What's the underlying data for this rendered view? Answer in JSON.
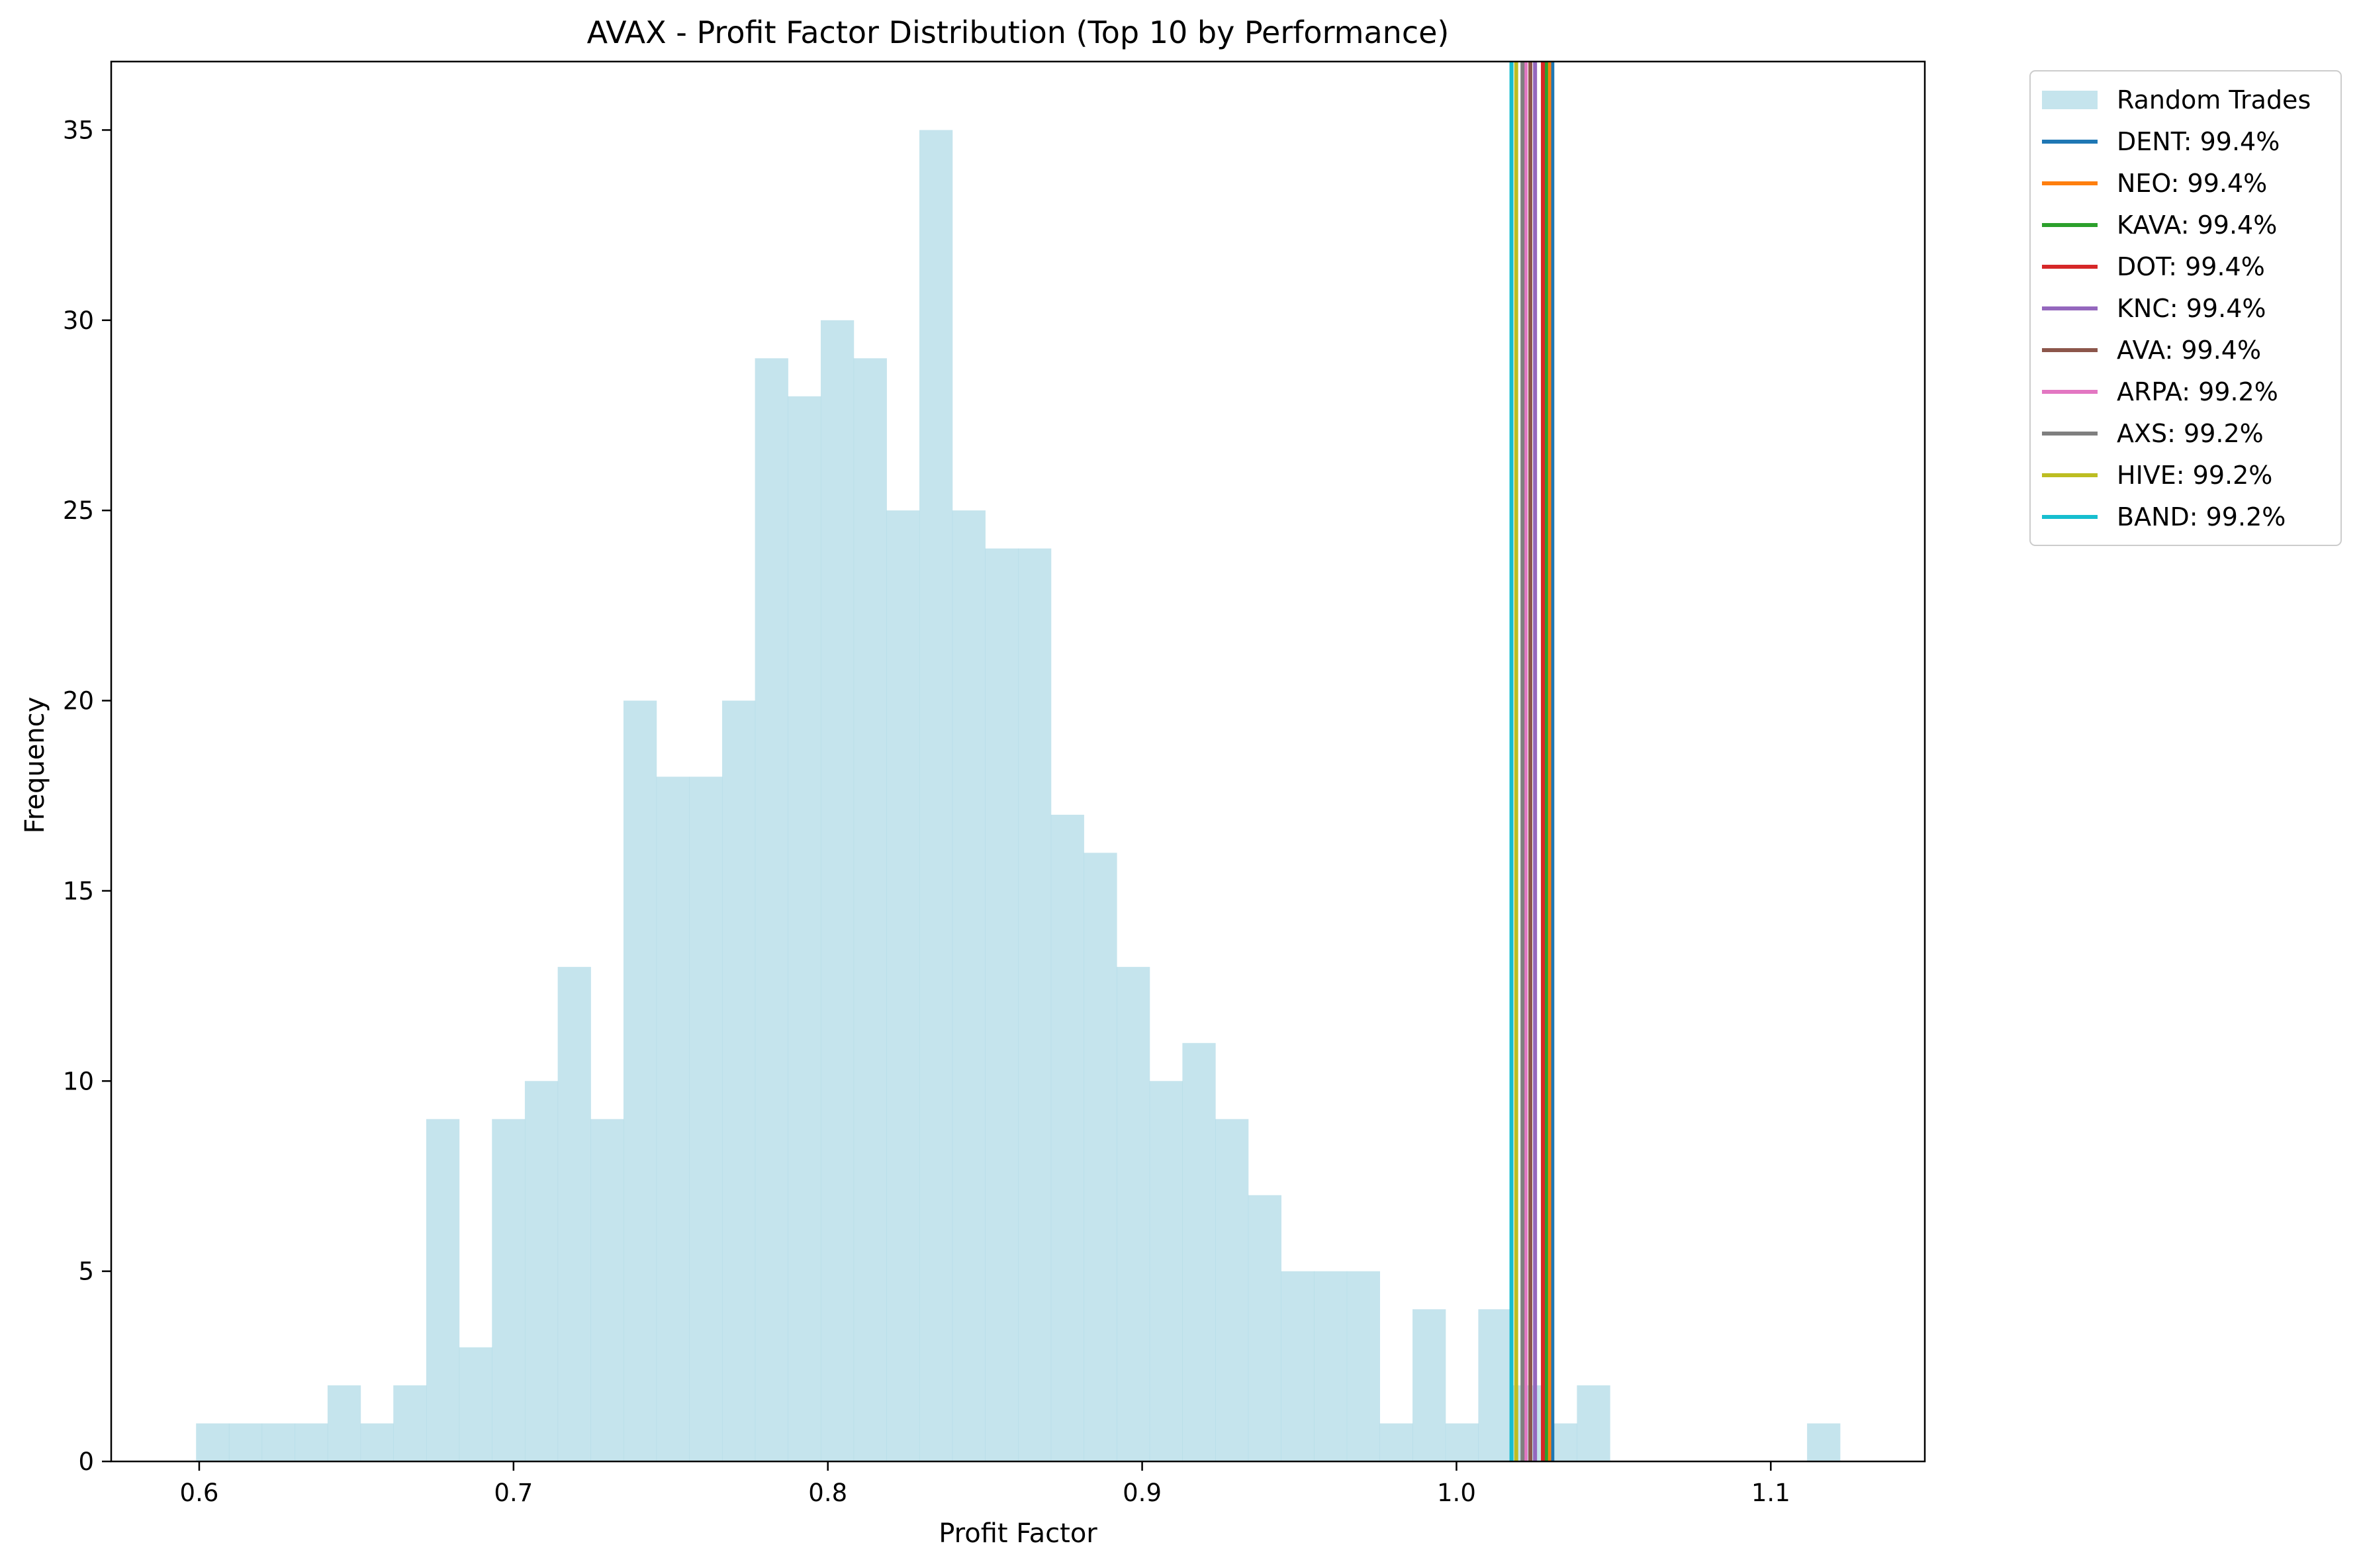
{
  "chart_data": {
    "type": "bar",
    "title": "AVAX - Profit Factor Distribution (Top 10 by Performance)",
    "xlabel": "Profit Factor",
    "ylabel": "Frequency",
    "xlim": [
      0.572,
      1.149
    ],
    "ylim": [
      0,
      36.8
    ],
    "xticks": [
      "0.6",
      "0.7",
      "0.8",
      "0.9",
      "1.0",
      "1.1"
    ],
    "yticks": [
      "0",
      "5",
      "10",
      "15",
      "20",
      "25",
      "30",
      "35"
    ],
    "grid": false,
    "legend_position": "outside-top-right",
    "histogram": {
      "name": "Random Trades",
      "color": "#add8e6",
      "bin_start": 0.599,
      "bin_width": 0.01046,
      "counts": [
        1,
        1,
        1,
        1,
        2,
        1,
        2,
        9,
        3,
        9,
        10,
        13,
        9,
        20,
        18,
        18,
        20,
        29,
        28,
        30,
        29,
        25,
        35,
        25,
        24,
        24,
        17,
        16,
        13,
        10,
        11,
        9,
        7,
        5,
        5,
        5,
        1,
        4,
        1,
        4,
        2,
        1,
        2,
        0,
        0,
        0,
        0,
        0,
        0,
        1
      ]
    },
    "series": [
      {
        "name": "DENT",
        "label": "DENT: 99.4%",
        "value": 1.0305,
        "color": "#1f77b4"
      },
      {
        "name": "NEO",
        "label": "NEO: 99.4%",
        "value": 1.0295,
        "color": "#ff7f0e"
      },
      {
        "name": "KAVA",
        "label": "KAVA: 99.4%",
        "value": 1.0285,
        "color": "#2ca02c"
      },
      {
        "name": "DOT",
        "label": "DOT: 99.4%",
        "value": 1.0275,
        "color": "#d62728"
      },
      {
        "name": "KNC",
        "label": "KNC: 99.4%",
        "value": 1.025,
        "color": "#9467bd"
      },
      {
        "name": "AVA",
        "label": "AVA: 99.4%",
        "value": 1.0235,
        "color": "#8c564b"
      },
      {
        "name": "ARPA",
        "label": "ARPA: 99.2%",
        "value": 1.022,
        "color": "#e377c2"
      },
      {
        "name": "AXS",
        "label": "AXS: 99.2%",
        "value": 1.021,
        "color": "#7f7f7f"
      },
      {
        "name": "HIVE",
        "label": "HIVE: 99.2%",
        "value": 1.019,
        "color": "#bcbd22"
      },
      {
        "name": "BAND",
        "label": "BAND: 99.2%",
        "value": 1.0175,
        "color": "#17becf"
      }
    ]
  }
}
